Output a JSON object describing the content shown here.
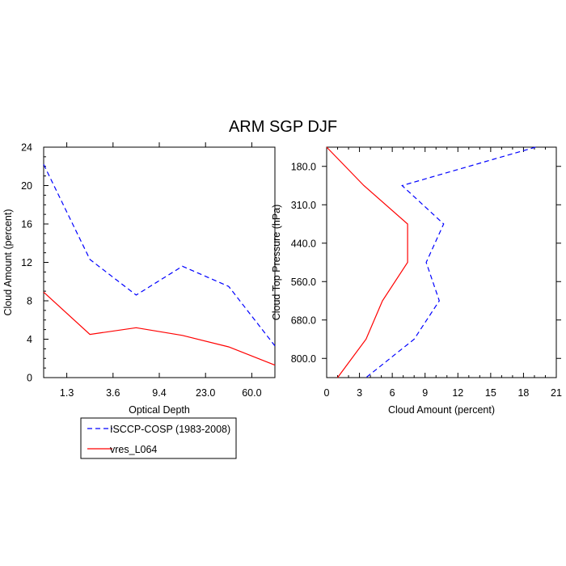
{
  "title": "ARM SGP DJF",
  "legend": {
    "placement": "bottom-left",
    "entries": [
      {
        "label": "ISCCP-COSP (1983-2008)",
        "color": "#0000ff",
        "dash": "dashed"
      },
      {
        "label": "vres_L064",
        "color": "#ff0000",
        "dash": "solid"
      }
    ]
  },
  "chart_data": [
    {
      "type": "line",
      "title": "ARM SGP DJF",
      "xlabel": "Optical Depth",
      "ylabel": "Cloud Amount (percent)",
      "x_tick_labels": [
        "1.3",
        "3.6",
        "9.4",
        "23.0",
        "60.0"
      ],
      "y_ticks": [
        0,
        4,
        8,
        12,
        16,
        20,
        24
      ],
      "ylim": [
        0,
        24
      ],
      "grid": false,
      "series": [
        {
          "name": "ISCCP-COSP (1983-2008)",
          "color": "#0000ff",
          "dash": "dashed",
          "values": [
            22.2,
            12.3,
            8.6,
            11.6,
            9.5,
            3.3
          ]
        },
        {
          "name": "vres_L064",
          "color": "#ff0000",
          "dash": "solid",
          "values": [
            8.9,
            4.5,
            5.2,
            4.4,
            3.2,
            1.3
          ]
        }
      ]
    },
    {
      "type": "line",
      "xlabel": "Cloud Amount (percent)",
      "ylabel": "Cloud Top Pressure (hPa)",
      "x_ticks": [
        0,
        3,
        6,
        9,
        12,
        15,
        18,
        21
      ],
      "xlim": [
        0,
        21
      ],
      "y_tick_labels": [
        "180.0",
        "310.0",
        "440.0",
        "560.0",
        "680.0",
        "800.0"
      ],
      "grid": false,
      "series": [
        {
          "name": "ISCCP-COSP (1983-2008)",
          "color": "#0000ff",
          "dash": "dashed",
          "values": [
            19.1,
            6.9,
            10.7,
            9.1,
            10.3,
            8.0,
            3.6
          ]
        },
        {
          "name": "vres_L064",
          "color": "#ff0000",
          "dash": "solid",
          "values": [
            0.0,
            3.4,
            7.4,
            7.4,
            5.1,
            3.6,
            1.0
          ]
        }
      ]
    }
  ]
}
